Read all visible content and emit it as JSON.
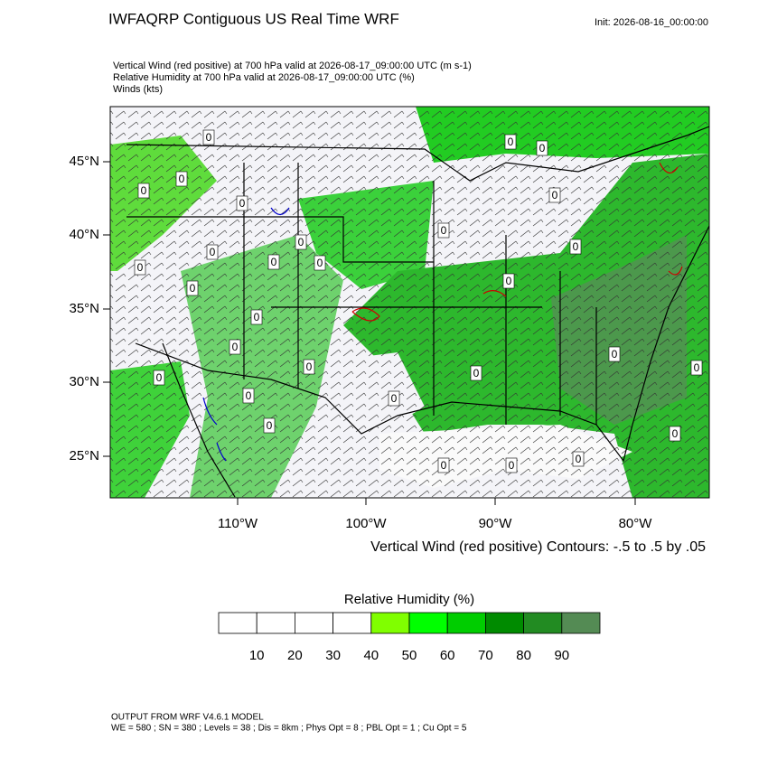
{
  "header": {
    "title": "IWFAQRP Contiguous US Real Time WRF",
    "init": "Init: 2026-08-16_00:00:00"
  },
  "fields": [
    "Vertical Wind (red positive) at 700 hPa valid at 2026-08-17_09:00:00 UTC   (m s-1)",
    "Relative Humidity at 700 hPa valid at 2026-08-17_09:00:00 UTC   (%)",
    "Winds   (kts)"
  ],
  "map": {
    "lat_labels": [
      "45°N",
      "40°N",
      "35°N",
      "30°N",
      "25°N"
    ],
    "lon_labels": [
      "110°W",
      "100°W",
      "90°W",
      "80°W"
    ],
    "contour_label": "0",
    "contour_note": "Vertical Wind (red positive) Contours: -.5 to .5 by .05"
  },
  "colorbar": {
    "title": "Relative Humidity  (%)",
    "colors": [
      "#ffffff",
      "#ffffff",
      "#ffffff",
      "#ffffff",
      "#80ff00",
      "#00ff00",
      "#00cd00",
      "#008b00",
      "#228b22",
      "#548b54"
    ],
    "labels": [
      "10",
      "20",
      "30",
      "40",
      "50",
      "60",
      "70",
      "80",
      "90"
    ]
  },
  "footer": {
    "model": "OUTPUT FROM WRF V4.6.1 MODEL",
    "details": "WE = 580 ; SN = 380 ; Levels = 38 ; Dis = 8km ; Phys Opt = 8 ; PBL Opt = 1 ; Cu Opt = 5"
  }
}
